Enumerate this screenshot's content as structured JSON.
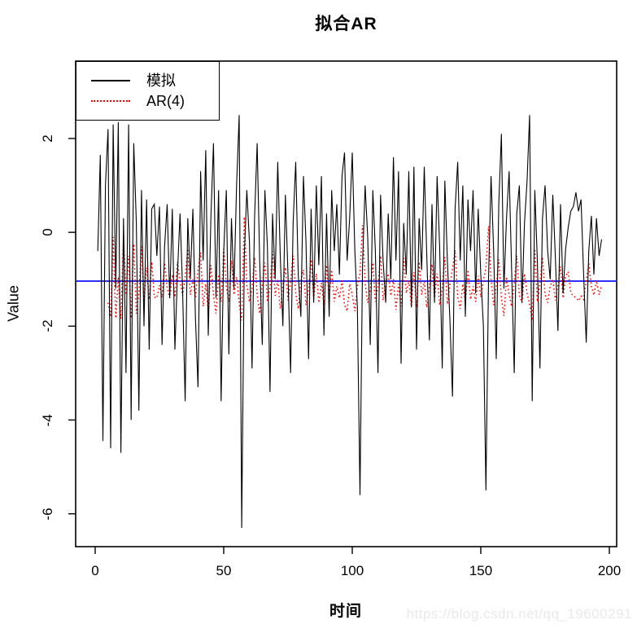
{
  "title": "拟合AR",
  "watermark": "https://blog.csdn.net/qq_19600291",
  "legend": {
    "items": [
      {
        "label": "模拟",
        "color": "#000000",
        "style": "solid"
      },
      {
        "label": "AR(4)",
        "color": "#ff0000",
        "style": "dotted"
      }
    ]
  },
  "chart_data": {
    "type": "line",
    "title": "拟合AR",
    "xlabel": "时间",
    "ylabel": "Value",
    "xlim": [
      0,
      200
    ],
    "ylim": [
      -6.7,
      3.65
    ],
    "x_ticks": [
      0,
      50,
      100,
      150,
      200
    ],
    "y_ticks": [
      2,
      0,
      -2,
      -4,
      -6
    ],
    "grid": false,
    "legend_position": "top-left",
    "hline": {
      "value": -1.04,
      "color": "#2222ff"
    },
    "series": [
      {
        "name": "模拟",
        "color": "#000000",
        "style": "solid",
        "x_start": 1,
        "values": [
          -0.4,
          1.65,
          -4.45,
          1.0,
          2.2,
          -4.6,
          2.3,
          -1.2,
          2.35,
          -4.7,
          0.3,
          -3.0,
          2.3,
          -4.0,
          1.9,
          0.2,
          -3.8,
          0.9,
          -2.0,
          0.7,
          -2.5,
          0.5,
          0.6,
          -0.5,
          0.55,
          -2.4,
          -0.3,
          0.6,
          -1.4,
          0.5,
          -2.5,
          -0.9,
          0.4,
          -1.2,
          -3.6,
          0.3,
          -1.0,
          0.5,
          -1.8,
          -3.3,
          1.3,
          -0.6,
          1.75,
          -2.2,
          0.3,
          1.9,
          -1.4,
          0.9,
          -3.6,
          -0.4,
          0.9,
          -2.6,
          0.3,
          -1.2,
          1.0,
          2.5,
          -6.3,
          -0.5,
          0.9,
          -0.2,
          -2.9,
          0.3,
          1.9,
          -0.6,
          -2.4,
          0.9,
          -0.3,
          -3.4,
          0.4,
          -1.0,
          1.5,
          -0.5,
          -2.0,
          0.8,
          -0.9,
          -3.0,
          0.2,
          1.5,
          -0.9,
          -1.8,
          1.2,
          -0.2,
          -2.7,
          0.5,
          -1.5,
          1.0,
          -0.7,
          1.2,
          -2.2,
          0.4,
          -1.8,
          0.9,
          -0.4,
          0.6,
          -0.9,
          1.2,
          1.7,
          -0.6,
          0.3,
          1.7,
          -0.4,
          -1.6,
          -5.6,
          -0.7,
          1.0,
          -0.1,
          -2.4,
          0.9,
          -0.4,
          -3.0,
          0.8,
          -0.6,
          -1.5,
          0.4,
          -1.0,
          1.6,
          -0.6,
          1.3,
          -2.8,
          0.2,
          -0.9,
          1.3,
          -1.6,
          1.4,
          -2.5,
          0.3,
          -0.8,
          1.4,
          -0.5,
          -2.3,
          0.6,
          -1.5,
          1.2,
          -0.3,
          -2.9,
          1.1,
          -0.6,
          -1.9,
          -3.5,
          0.5,
          1.5,
          -0.6,
          1.0,
          -1.8,
          0.7,
          -0.4,
          0.9,
          -1.3,
          0.5,
          -0.9,
          -2.0,
          -5.5,
          -1.0,
          1.2,
          -0.4,
          -2.7,
          0.6,
          2.1,
          -1.2,
          0.3,
          1.3,
          -0.8,
          -3.0,
          0.4,
          1.0,
          -1.5,
          0.2,
          1.1,
          2.5,
          -3.6,
          0.9,
          -0.6,
          -2.9,
          0.3,
          1.0,
          -0.4,
          -1.0,
          0.8,
          -0.5,
          -2.1,
          0.6,
          -1.3,
          -0.35,
          0.1,
          0.45,
          0.55,
          0.85,
          0.45,
          0.7,
          -0.9,
          -2.35,
          -0.4,
          0.35,
          -0.9,
          0.3,
          -0.5,
          -0.15
        ]
      },
      {
        "name": "AR(4)",
        "color": "#ff0000",
        "style": "dotted",
        "x_start": 5,
        "values": [
          -1.5,
          -1.8,
          -0.1,
          -1.83,
          -0.95,
          -1.84,
          -0.08,
          -1.33,
          -0.5,
          -1.83,
          -0.25,
          -1.73,
          -1.3,
          -0.3,
          -1.48,
          -0.75,
          -1.43,
          -0.63,
          -1.38,
          -1.4,
          -1.13,
          -1.39,
          -0.65,
          -1.18,
          -1.4,
          -0.9,
          -1.38,
          -0.63,
          -1.03,
          -1.35,
          -0.95,
          -0.35,
          -1.33,
          -1.0,
          -1.38,
          -0.8,
          -0.43,
          -1.58,
          -1.1,
          -1.69,
          -0.7,
          -1.33,
          -1.73,
          -0.9,
          -1.48,
          -0.35,
          -1.15,
          -1.48,
          -0.6,
          -1.33,
          -0.95,
          -1.5,
          -1.88,
          0.33,
          -1.13,
          -1.48,
          -1.2,
          -0.53,
          -1.33,
          -1.73,
          -1.1,
          -0.65,
          -1.48,
          -1.18,
          -0.4,
          -1.35,
          -1.0,
          -1.63,
          -1.13,
          -0.75,
          -1.45,
          -1.03,
          -0.5,
          -1.3,
          -1.63,
          -1.03,
          -0.8,
          -1.55,
          -1.2,
          -0.58,
          -1.38,
          -0.88,
          -1.5,
          -1.08,
          -1.55,
          -0.7,
          -1.35,
          -0.8,
          -1.48,
          -1.15,
          -1.4,
          -1.03,
          -1.55,
          -1.68,
          -1.1,
          -1.33,
          -1.68,
          -1.15,
          -0.85,
          0.15,
          -1.08,
          -1.5,
          -1.23,
          -0.65,
          -1.48,
          -1.15,
          -0.5,
          -1.45,
          -1.1,
          -0.88,
          -1.35,
          -1.0,
          -1.65,
          -1.1,
          -1.58,
          -0.55,
          -1.3,
          -1.03,
          -1.58,
          -0.85,
          -1.6,
          -0.63,
          -1.33,
          -1.05,
          -1.6,
          -1.13,
          -0.68,
          -1.4,
          -0.88,
          -1.55,
          -1.18,
          -0.53,
          -1.53,
          -1.1,
          -0.78,
          -0.38,
          -1.38,
          -1.63,
          -1.1,
          -1.5,
          -0.8,
          -1.43,
          -1.15,
          -1.48,
          -0.93,
          -1.38,
          -1.03,
          -0.75,
          0.13,
          -1.0,
          -1.55,
          -1.15,
          -0.58,
          -1.4,
          -1.78,
          -0.95,
          -1.33,
          -1.58,
          -1.05,
          -0.5,
          -1.35,
          -1.5,
          -0.88,
          -1.3,
          -1.53,
          -1.88,
          -0.35,
          -1.48,
          -1.1,
          -0.53,
          -1.33,
          -1.5,
          -1.15,
          -1.0,
          -1.45,
          -1.13,
          -0.73,
          -1.4,
          -0.93,
          -0.84,
          -1.28,
          -1.36,
          -1.39,
          -1.46,
          -1.36,
          -1.43,
          -1.03,
          -0.66,
          -1.15,
          -1.34,
          -1.03,
          -1.33,
          -1.13
        ]
      }
    ]
  }
}
